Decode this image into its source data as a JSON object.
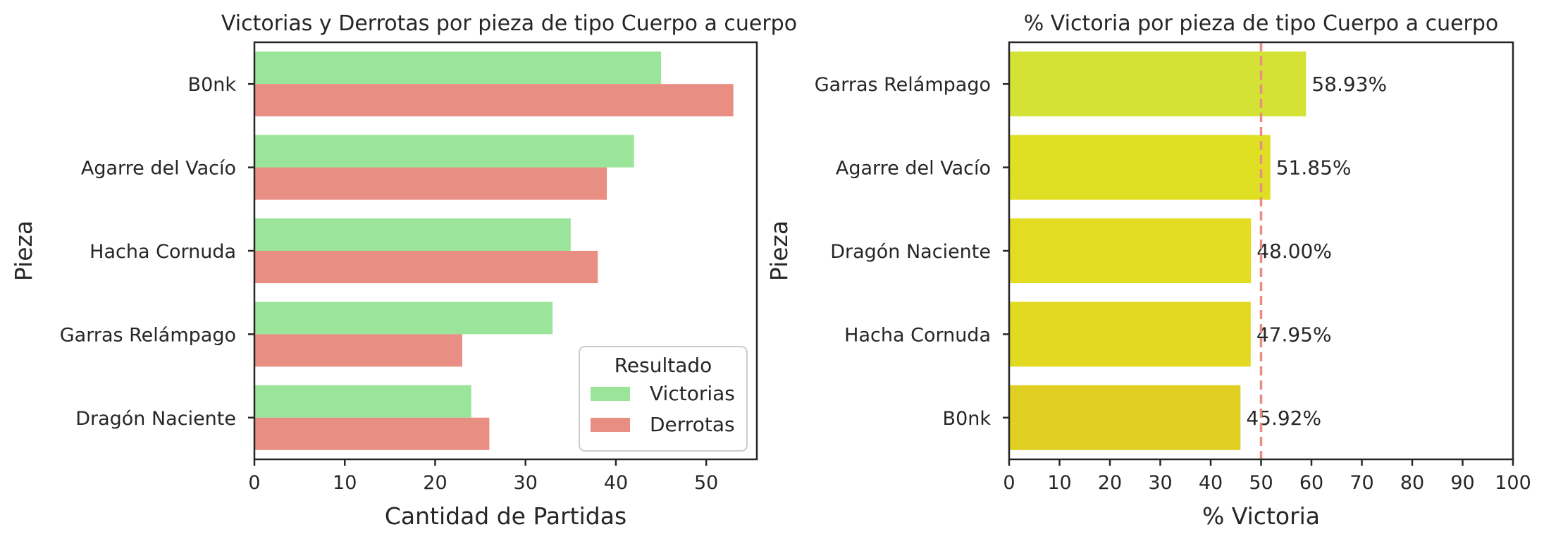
{
  "chart_data": [
    {
      "type": "bar",
      "orientation": "horizontal",
      "title": "Victorias y Derrotas por pieza de tipo Cuerpo a cuerpo",
      "xlabel": "Cantidad de Partidas",
      "ylabel": "Pieza",
      "categories": [
        "B0nk",
        "Agarre del Vacío",
        "Hacha Cornuda",
        "Garras Relámpago",
        "Dragón Naciente"
      ],
      "series": [
        {
          "name": "Victorias",
          "values": [
            45,
            42,
            35,
            33,
            24
          ],
          "color": "#9be59b"
        },
        {
          "name": "Derrotas",
          "values": [
            53,
            39,
            38,
            23,
            26
          ],
          "color": "#e88e82"
        }
      ],
      "xlim": [
        0,
        55.6
      ],
      "xticks": [
        0,
        10,
        20,
        30,
        40,
        50
      ],
      "legend": {
        "title": "Resultado",
        "placement": "lower-right"
      },
      "grid": false
    },
    {
      "type": "bar",
      "orientation": "horizontal",
      "title": "% Victoria por pieza de tipo Cuerpo a cuerpo",
      "xlabel": "% Victoria",
      "ylabel": "Pieza",
      "categories": [
        "Garras Relámpago",
        "Agarre del Vacío",
        "Dragón Naciente",
        "Hacha Cornuda",
        "B0nk"
      ],
      "values": [
        58.93,
        51.85,
        48.0,
        47.95,
        45.92
      ],
      "value_labels": [
        "58.93%",
        "51.85%",
        "48.00%",
        "47.95%",
        "45.92%"
      ],
      "colors": [
        "#d3e235",
        "#dfe024",
        "#e2dc22",
        "#e2da22",
        "#e0cf22"
      ],
      "xlim": [
        0,
        100
      ],
      "xticks": [
        0,
        10,
        20,
        30,
        40,
        50,
        60,
        70,
        80,
        90,
        100
      ],
      "reference_line": {
        "x": 50,
        "style": "dashed",
        "color": "#e88e82"
      },
      "grid": false
    }
  ]
}
